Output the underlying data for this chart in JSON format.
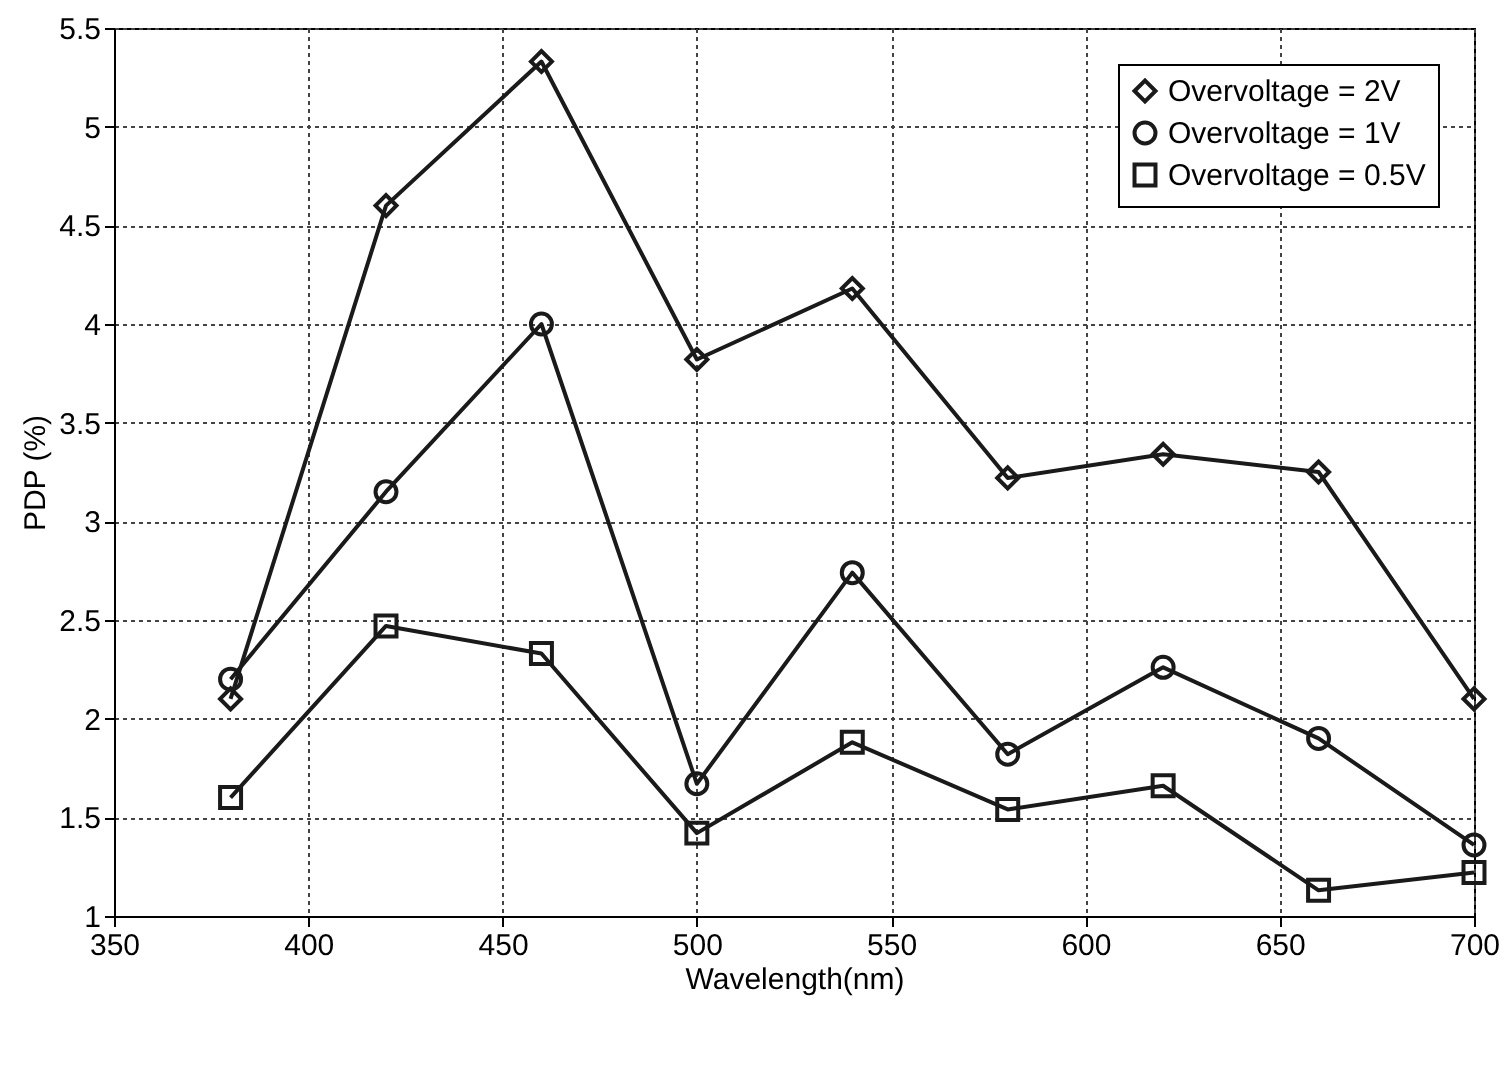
{
  "chart_data": {
    "type": "line",
    "xlabel": "Wavelength(nm)",
    "ylabel": "PDP (%)",
    "x": [
      380,
      420,
      460,
      500,
      540,
      580,
      620,
      660,
      700
    ],
    "xlim": [
      350,
      700
    ],
    "xticks": [
      350,
      400,
      450,
      500,
      550,
      600,
      650,
      700
    ],
    "ylim": [
      1,
      5.5
    ],
    "yticks": [
      1,
      1.5,
      2,
      2.5,
      3,
      3.5,
      4,
      4.5,
      5,
      5.5
    ],
    "grid": true,
    "legend": "top right",
    "line_style": "solid",
    "series": [
      {
        "name": "Overvoltage = 2V",
        "color": "#1a1a1a",
        "marker": "diamond",
        "values": [
          2.1,
          4.6,
          5.33,
          3.82,
          4.18,
          3.22,
          3.34,
          3.25,
          2.1
        ]
      },
      {
        "name": "Overvoltage = 1V",
        "color": "#1a1a1a",
        "marker": "circle",
        "values": [
          2.2,
          3.15,
          4.0,
          1.67,
          2.74,
          1.82,
          2.26,
          1.9,
          1.36
        ]
      },
      {
        "name": "Overvoltage = 0.5V",
        "color": "#1a1a1a",
        "marker": "square",
        "values": [
          1.6,
          2.47,
          2.33,
          1.42,
          1.88,
          1.54,
          1.66,
          1.13,
          1.22
        ]
      }
    ]
  }
}
